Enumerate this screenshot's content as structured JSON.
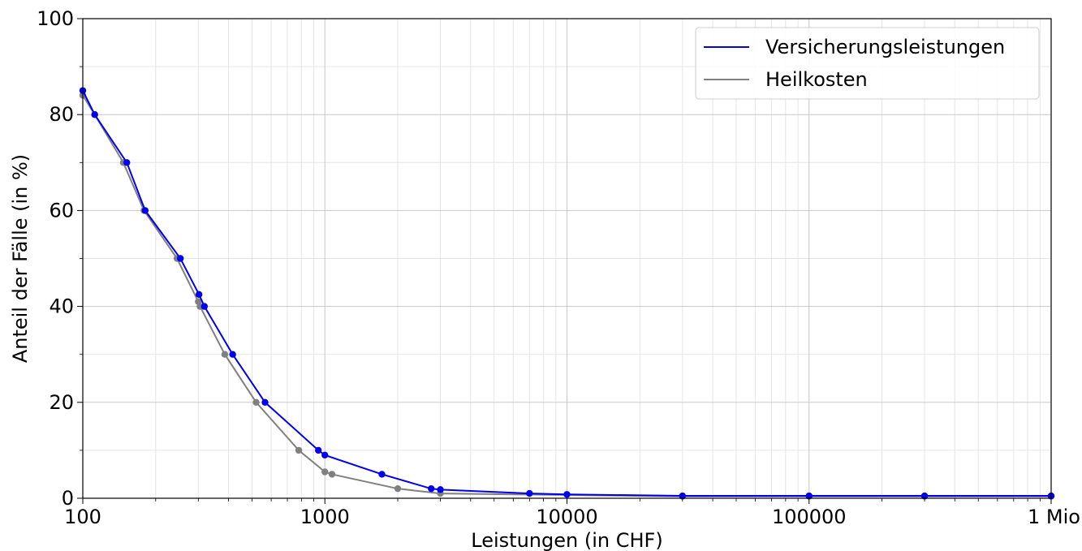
{
  "chart_data": {
    "type": "line",
    "xlabel": "Leistungen (in CHF)",
    "ylabel": "Anteil der Fälle (in %)",
    "x_scale": "log",
    "xlim": [
      100,
      1000000
    ],
    "ylim": [
      0,
      100
    ],
    "x_ticks": [
      {
        "value": 100,
        "label": "100"
      },
      {
        "value": 1000,
        "label": "1000"
      },
      {
        "value": 10000,
        "label": "10000"
      },
      {
        "value": 100000,
        "label": "100000"
      },
      {
        "value": 1000000,
        "label": "1 Mio"
      }
    ],
    "y_ticks": [
      {
        "value": 0,
        "label": "0"
      },
      {
        "value": 20,
        "label": "20"
      },
      {
        "value": 40,
        "label": "40"
      },
      {
        "value": 60,
        "label": "60"
      },
      {
        "value": 80,
        "label": "80"
      },
      {
        "value": 100,
        "label": "100"
      }
    ],
    "grid": true,
    "legend_position": "top-right",
    "series": [
      {
        "name": "Versicherungsleistungen",
        "color": "#0000ee",
        "points": [
          [
            100,
            85
          ],
          [
            112,
            80
          ],
          [
            152,
            70
          ],
          [
            181,
            60
          ],
          [
            253,
            50
          ],
          [
            302,
            42.5
          ],
          [
            318,
            40
          ],
          [
            416,
            30
          ],
          [
            566,
            20
          ],
          [
            940,
            10
          ],
          [
            1000,
            9
          ],
          [
            1720,
            5
          ],
          [
            2750,
            2
          ],
          [
            3000,
            1.8
          ],
          [
            7000,
            1
          ],
          [
            10000,
            0.8
          ],
          [
            30000,
            0.5
          ],
          [
            100000,
            0.5
          ],
          [
            300000,
            0.5
          ],
          [
            1000000,
            0.5
          ]
        ]
      },
      {
        "name": "Heilkosten",
        "color": "#808080",
        "points": [
          [
            100,
            84
          ],
          [
            112,
            80
          ],
          [
            147,
            70
          ],
          [
            179,
            60
          ],
          [
            245,
            50
          ],
          [
            300,
            41
          ],
          [
            305,
            40
          ],
          [
            386,
            30
          ],
          [
            520,
            20
          ],
          [
            780,
            10
          ],
          [
            1000,
            5.5
          ],
          [
            1070,
            5
          ],
          [
            2000,
            2
          ],
          [
            3000,
            1
          ],
          [
            30000,
            0.4
          ],
          [
            100000,
            0.4
          ],
          [
            300000,
            0.4
          ],
          [
            1000000,
            0.4
          ]
        ]
      }
    ]
  }
}
